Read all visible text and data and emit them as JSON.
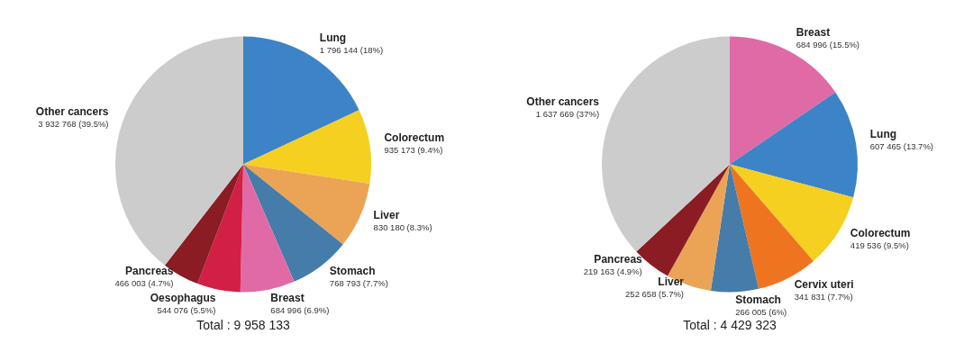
{
  "chart_data": [
    {
      "type": "pie",
      "categories": [
        "Lung",
        "Colorectum",
        "Liver",
        "Stomach",
        "Breast",
        "Oesophagus",
        "Pancreas",
        "Other cancers"
      ],
      "values": [
        1796144,
        935173,
        830180,
        768793,
        684996,
        544076,
        466003,
        3932768
      ],
      "value_labels": [
        "1 796 144 (18%)",
        "935 173 (9.4%)",
        "830 180 (8.3%)",
        "768 793 (7.7%)",
        "684 996 (6.9%)",
        "544 076 (5.5%)",
        "466 003 (4.7%)",
        "3 932 768 (39.5%)"
      ],
      "colors": [
        "#3d83c7",
        "#f5d020",
        "#eba455",
        "#457ca9",
        "#e06aa5",
        "#d21f45",
        "#8b1c24",
        "#cccccc"
      ],
      "annotations": [
        "Total : 9 958 133"
      ]
    },
    {
      "type": "pie",
      "categories": [
        "Breast",
        "Lung",
        "Colorectum",
        "Cervix uteri",
        "Stomach",
        "Liver",
        "Pancreas",
        "Other cancers"
      ],
      "values": [
        684996,
        607465,
        419536,
        341831,
        266005,
        252658,
        219163,
        1637669
      ],
      "value_labels": [
        "684 996 (15.5%)",
        "607 465 (13.7%)",
        "419 536 (9.5%)",
        "341 831 (7.7%)",
        "266 005 (6%)",
        "252 658 (5.7%)",
        "219 163 (4.9%)",
        "1 637 669 (37%)"
      ],
      "colors": [
        "#e06aa5",
        "#3d83c7",
        "#f5d020",
        "#ef7420",
        "#457ca9",
        "#eba455",
        "#8b1c24",
        "#cccccc"
      ],
      "annotations": [
        "Total : 4 429 323"
      ]
    }
  ]
}
